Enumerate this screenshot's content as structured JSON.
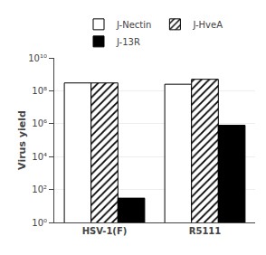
{
  "chart_data": {
    "type": "bar",
    "categories": [
      "HSV-1(F)",
      "R5111"
    ],
    "series": [
      {
        "name": "J-Nectin",
        "color": "white",
        "values": [
          300000000.0,
          250000000.0
        ]
      },
      {
        "name": "J-HveA",
        "color": "white",
        "marker": "hatched",
        "values": [
          300000000.0,
          500000000.0
        ]
      },
      {
        "name": "J-13R",
        "color": "black",
        "values": [
          30,
          800000.0
        ]
      }
    ],
    "ylabel": "Virus yield",
    "log": "y",
    "ylim": [
      1,
      10000000000.0
    ],
    "yticks": [
      {
        "value": 1,
        "label": "10⁰"
      },
      {
        "value": 100,
        "label": "10²"
      },
      {
        "value": 10000,
        "label": "10⁴"
      },
      {
        "value": 1000000,
        "label": "10⁶"
      },
      {
        "value": 100000000,
        "label": "10⁸"
      },
      {
        "value": 10000000000,
        "label": "10¹⁰"
      }
    ],
    "grid": true,
    "legend": "top"
  }
}
